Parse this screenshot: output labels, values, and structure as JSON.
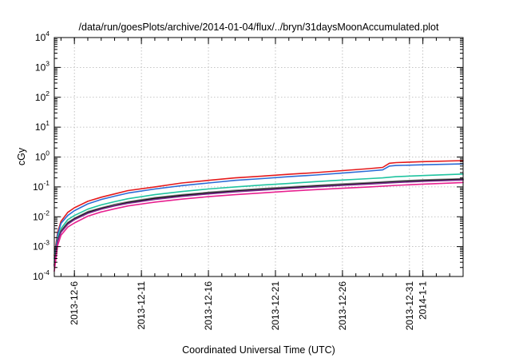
{
  "chart_data": {
    "type": "line",
    "title": "/data/run/goesPlots/archive/2014-01-04/flux/../bryn/31daysMoonAccumulated.plot",
    "xlabel": "Coordinated Universal Time (UTC)",
    "ylabel": "cGy",
    "yscale": "log",
    "ylim_exponents": [
      -4,
      4
    ],
    "y_tick_labels": [
      {
        "base": "10",
        "exp": "-4"
      },
      {
        "base": "10",
        "exp": "-3"
      },
      {
        "base": "10",
        "exp": "-2"
      },
      {
        "base": "10",
        "exp": "-1"
      },
      {
        "base": "10",
        "exp": "0"
      },
      {
        "base": "10",
        "exp": "1"
      },
      {
        "base": "10",
        "exp": "2"
      },
      {
        "base": "10",
        "exp": "3"
      },
      {
        "base": "10",
        "exp": "4"
      }
    ],
    "xlim": [
      "2013-12-04T12:00",
      "2014-01-04T00:00"
    ],
    "x_ticks": [
      "2013-12-6",
      "2013-12-11",
      "2013-12-16",
      "2013-12-21",
      "2013-12-26",
      "2013-12-31",
      "2014-1-1"
    ],
    "grid": true,
    "legend": "none",
    "series": [
      {
        "color": "#e41a1c",
        "points": [
          [
            "2013-12-04T12:00",
            0.0005
          ],
          [
            "2013-12-04T18:00",
            0.003
          ],
          [
            "2013-12-05T00:00",
            0.007
          ],
          [
            "2013-12-05T12:00",
            0.014
          ],
          [
            "2013-12-06T00:00",
            0.02
          ],
          [
            "2013-12-07T00:00",
            0.033
          ],
          [
            "2013-12-08T00:00",
            0.045
          ],
          [
            "2013-12-09T00:00",
            0.058
          ],
          [
            "2013-12-10T00:00",
            0.075
          ],
          [
            "2013-12-12T00:00",
            0.1
          ],
          [
            "2013-12-14T00:00",
            0.135
          ],
          [
            "2013-12-16T00:00",
            0.165
          ],
          [
            "2013-12-18T00:00",
            0.2
          ],
          [
            "2013-12-20T00:00",
            0.23
          ],
          [
            "2013-12-22T00:00",
            0.265
          ],
          [
            "2013-12-24T00:00",
            0.3
          ],
          [
            "2013-12-26T00:00",
            0.35
          ],
          [
            "2013-12-28T00:00",
            0.41
          ],
          [
            "2013-12-29T00:00",
            0.45
          ],
          [
            "2013-12-29T12:00",
            0.62
          ],
          [
            "2013-12-30T00:00",
            0.65
          ],
          [
            "2014-01-01T00:00",
            0.7
          ],
          [
            "2014-01-04T00:00",
            0.76
          ]
        ]
      },
      {
        "color": "#2b6cd6",
        "points": [
          [
            "2013-12-04T12:00",
            0.0004
          ],
          [
            "2013-12-04T18:00",
            0.0025
          ],
          [
            "2013-12-05T00:00",
            0.006
          ],
          [
            "2013-12-05T12:00",
            0.011
          ],
          [
            "2013-12-06T00:00",
            0.016
          ],
          [
            "2013-12-07T00:00",
            0.027
          ],
          [
            "2013-12-08T00:00",
            0.038
          ],
          [
            "2013-12-09T00:00",
            0.049
          ],
          [
            "2013-12-10T00:00",
            0.062
          ],
          [
            "2013-12-12T00:00",
            0.085
          ],
          [
            "2013-12-14T00:00",
            0.11
          ],
          [
            "2013-12-16T00:00",
            0.135
          ],
          [
            "2013-12-18T00:00",
            0.165
          ],
          [
            "2013-12-20T00:00",
            0.19
          ],
          [
            "2013-12-22T00:00",
            0.22
          ],
          [
            "2013-12-24T00:00",
            0.25
          ],
          [
            "2013-12-26T00:00",
            0.29
          ],
          [
            "2013-12-28T00:00",
            0.34
          ],
          [
            "2013-12-29T00:00",
            0.37
          ],
          [
            "2013-12-29T12:00",
            0.5
          ],
          [
            "2013-12-30T00:00",
            0.52
          ],
          [
            "2014-01-01T00:00",
            0.55
          ],
          [
            "2014-01-04T00:00",
            0.59
          ]
        ]
      },
      {
        "color": "#20c4a0",
        "points": [
          [
            "2013-12-04T12:00",
            0.0003
          ],
          [
            "2013-12-04T18:00",
            0.002
          ],
          [
            "2013-12-05T00:00",
            0.004
          ],
          [
            "2013-12-05T12:00",
            0.008
          ],
          [
            "2013-12-06T00:00",
            0.011
          ],
          [
            "2013-12-07T00:00",
            0.018
          ],
          [
            "2013-12-08T00:00",
            0.025
          ],
          [
            "2013-12-09T00:00",
            0.032
          ],
          [
            "2013-12-10T00:00",
            0.04
          ],
          [
            "2013-12-12T00:00",
            0.055
          ],
          [
            "2013-12-14T00:00",
            0.07
          ],
          [
            "2013-12-16T00:00",
            0.085
          ],
          [
            "2013-12-18T00:00",
            0.1
          ],
          [
            "2013-12-20T00:00",
            0.115
          ],
          [
            "2013-12-22T00:00",
            0.13
          ],
          [
            "2013-12-24T00:00",
            0.15
          ],
          [
            "2013-12-26T00:00",
            0.17
          ],
          [
            "2013-12-28T00:00",
            0.19
          ],
          [
            "2013-12-29T00:00",
            0.2
          ],
          [
            "2013-12-30T00:00",
            0.22
          ],
          [
            "2014-01-01T00:00",
            0.24
          ],
          [
            "2014-01-04T00:00",
            0.27
          ]
        ]
      },
      {
        "color": "#8a8a8a",
        "points": [
          [
            "2013-12-04T12:00",
            0.00025
          ],
          [
            "2013-12-04T18:00",
            0.0017
          ],
          [
            "2013-12-05T00:00",
            0.0034
          ],
          [
            "2013-12-05T12:00",
            0.0065
          ],
          [
            "2013-12-06T00:00",
            0.009
          ],
          [
            "2013-12-07T00:00",
            0.015
          ],
          [
            "2013-12-08T00:00",
            0.02
          ],
          [
            "2013-12-09T00:00",
            0.026
          ],
          [
            "2013-12-10T00:00",
            0.032
          ],
          [
            "2013-12-12T00:00",
            0.044
          ],
          [
            "2013-12-14T00:00",
            0.055
          ],
          [
            "2013-12-16T00:00",
            0.066
          ],
          [
            "2013-12-18T00:00",
            0.077
          ],
          [
            "2013-12-20T00:00",
            0.088
          ],
          [
            "2013-12-22T00:00",
            0.1
          ],
          [
            "2013-12-24T00:00",
            0.113
          ],
          [
            "2013-12-26T00:00",
            0.126
          ],
          [
            "2013-12-28T00:00",
            0.14
          ],
          [
            "2013-12-30T00:00",
            0.158
          ],
          [
            "2014-01-01T00:00",
            0.172
          ],
          [
            "2014-01-04T00:00",
            0.19
          ]
        ]
      },
      {
        "color": "#111111",
        "points": [
          [
            "2013-12-04T12:00",
            0.00024
          ],
          [
            "2013-12-04T18:00",
            0.0016
          ],
          [
            "2013-12-05T00:00",
            0.0032
          ],
          [
            "2013-12-05T12:00",
            0.006
          ],
          [
            "2013-12-06T00:00",
            0.0085
          ],
          [
            "2013-12-07T00:00",
            0.014
          ],
          [
            "2013-12-08T00:00",
            0.019
          ],
          [
            "2013-12-09T00:00",
            0.024
          ],
          [
            "2013-12-10T00:00",
            0.03
          ],
          [
            "2013-12-12T00:00",
            0.041
          ],
          [
            "2013-12-14T00:00",
            0.052
          ],
          [
            "2013-12-16T00:00",
            0.062
          ],
          [
            "2013-12-18T00:00",
            0.072
          ],
          [
            "2013-12-20T00:00",
            0.083
          ],
          [
            "2013-12-22T00:00",
            0.094
          ],
          [
            "2013-12-24T00:00",
            0.106
          ],
          [
            "2013-12-26T00:00",
            0.118
          ],
          [
            "2013-12-28T00:00",
            0.132
          ],
          [
            "2013-12-30T00:00",
            0.148
          ],
          [
            "2014-01-01T00:00",
            0.162
          ],
          [
            "2014-01-04T00:00",
            0.18
          ]
        ]
      },
      {
        "color": "#7b2d8e",
        "points": [
          [
            "2013-12-04T12:00",
            0.00022
          ],
          [
            "2013-12-04T18:00",
            0.0015
          ],
          [
            "2013-12-05T00:00",
            0.003
          ],
          [
            "2013-12-05T12:00",
            0.0056
          ],
          [
            "2013-12-06T00:00",
            0.008
          ],
          [
            "2013-12-07T00:00",
            0.013
          ],
          [
            "2013-12-08T00:00",
            0.018
          ],
          [
            "2013-12-09T00:00",
            0.023
          ],
          [
            "2013-12-10T00:00",
            0.028
          ],
          [
            "2013-12-12T00:00",
            0.038
          ],
          [
            "2013-12-14T00:00",
            0.048
          ],
          [
            "2013-12-16T00:00",
            0.058
          ],
          [
            "2013-12-18T00:00",
            0.068
          ],
          [
            "2013-12-20T00:00",
            0.078
          ],
          [
            "2013-12-22T00:00",
            0.089
          ],
          [
            "2013-12-24T00:00",
            0.1
          ],
          [
            "2013-12-26T00:00",
            0.112
          ],
          [
            "2013-12-28T00:00",
            0.125
          ],
          [
            "2013-12-30T00:00",
            0.14
          ],
          [
            "2014-01-01T00:00",
            0.153
          ],
          [
            "2014-01-04T00:00",
            0.17
          ]
        ]
      },
      {
        "color": "#e8208f",
        "points": [
          [
            "2013-12-04T12:00",
            0.00015
          ],
          [
            "2013-12-04T18:00",
            0.0011
          ],
          [
            "2013-12-05T00:00",
            0.0024
          ],
          [
            "2013-12-05T12:00",
            0.0045
          ],
          [
            "2013-12-06T00:00",
            0.0062
          ],
          [
            "2013-12-07T00:00",
            0.0105
          ],
          [
            "2013-12-08T00:00",
            0.0145
          ],
          [
            "2013-12-09T00:00",
            0.0185
          ],
          [
            "2013-12-10T00:00",
            0.023
          ],
          [
            "2013-12-12T00:00",
            0.031
          ],
          [
            "2013-12-14T00:00",
            0.039
          ],
          [
            "2013-12-16T00:00",
            0.047
          ],
          [
            "2013-12-18T00:00",
            0.055
          ],
          [
            "2013-12-20T00:00",
            0.063
          ],
          [
            "2013-12-22T00:00",
            0.072
          ],
          [
            "2013-12-24T00:00",
            0.081
          ],
          [
            "2013-12-26T00:00",
            0.09
          ],
          [
            "2013-12-28T00:00",
            0.1
          ],
          [
            "2013-12-30T00:00",
            0.112
          ],
          [
            "2014-01-01T00:00",
            0.124
          ],
          [
            "2014-01-04T00:00",
            0.14
          ]
        ]
      }
    ]
  }
}
